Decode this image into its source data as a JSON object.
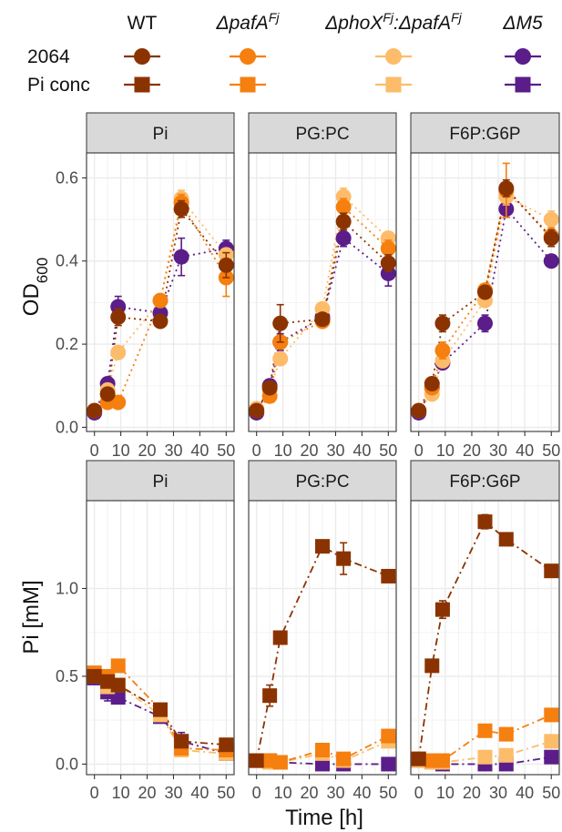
{
  "legend": {
    "row_labels": [
      "2064",
      "Pi conc"
    ],
    "strains": [
      {
        "key": "WT",
        "label": "WT",
        "color": "#8B3300"
      },
      {
        "key": "pafA",
        "label": "ΔpafA^Fj",
        "color": "#F57F0F"
      },
      {
        "key": "phoX",
        "label": "ΔphoX^Fj:ΔpafA^Fj",
        "color": "#FCBC6A"
      },
      {
        "key": "M5",
        "label": "ΔM5",
        "color": "#5B1D8A"
      }
    ]
  },
  "colors": {
    "WT": "#8B3300",
    "pafA": "#F57F0F",
    "phoX": "#FCBC6A",
    "M5": "#5B1D8A",
    "strip_bg": "#D9D9D9",
    "grid": "#EBEBEB"
  },
  "panels": [
    "Pi",
    "PG:PC",
    "F6P:G6P"
  ],
  "xlabel": "Time [h]",
  "ylabel_top": "OD",
  "ylabel_top_sub": "600",
  "ylabel_bottom": "Pi [mM]",
  "chart_data": [
    {
      "type": "line",
      "title": "",
      "ylabel": "OD600",
      "xlabel": "Time [h]",
      "xlim": [
        -3,
        53
      ],
      "ylim": [
        -0.01,
        0.66
      ],
      "x_ticks": [
        0,
        10,
        20,
        30,
        40,
        50
      ],
      "y_ticks": [
        0.0,
        0.2,
        0.4,
        0.6
      ],
      "y_tick_labels": [
        "0.0",
        "0.2",
        "0.4",
        "0.6"
      ],
      "marker": "circle",
      "line_style": "dotted",
      "grid": true,
      "facets": [
        {
          "panel": "Pi",
          "x": [
            0,
            5,
            9,
            25,
            33,
            50
          ],
          "series": [
            {
              "name": "WT",
              "values": [
                0.04,
                0.08,
                0.265,
                0.255,
                0.525,
                0.39
              ],
              "errors": [
                0,
                0,
                0.02,
                0,
                0.02,
                0.03
              ]
            },
            {
              "name": "ΔpafA^Fj",
              "values": [
                0.04,
                0.06,
                0.06,
                0.305,
                0.54,
                0.36
              ],
              "errors": [
                0,
                0,
                0,
                0,
                0.02,
                0.045
              ]
            },
            {
              "name": "ΔphoX^Fj:ΔpafA^Fj",
              "values": [
                0.04,
                0.09,
                0.18,
                0.305,
                0.55,
                0.415
              ],
              "errors": [
                0,
                0,
                0,
                0,
                0.02,
                0
              ]
            },
            {
              "name": "ΔM5",
              "values": [
                0.035,
                0.105,
                0.29,
                0.275,
                0.41,
                0.43
              ],
              "errors": [
                0,
                0.01,
                0.025,
                0,
                0.045,
                0.02
              ]
            }
          ]
        },
        {
          "panel": "PG:PC",
          "x": [
            0,
            5,
            9,
            25,
            33,
            50
          ],
          "series": [
            {
              "name": "WT",
              "values": [
                0.04,
                0.095,
                0.25,
                0.26,
                0.495,
                0.395
              ],
              "errors": [
                0,
                0,
                0.045,
                0,
                0.02,
                0.02
              ]
            },
            {
              "name": "ΔpafA^Fj",
              "values": [
                0.04,
                0.075,
                0.205,
                0.255,
                0.53,
                0.43
              ],
              "errors": [
                0,
                0,
                0,
                0,
                0.02,
                0.02
              ]
            },
            {
              "name": "ΔphoX^Fj:ΔpafA^Fj",
              "values": [
                0.045,
                0.09,
                0.165,
                0.285,
                0.555,
                0.455
              ],
              "errors": [
                0,
                0,
                0,
                0,
                0.02,
                0
              ]
            },
            {
              "name": "ΔM5",
              "values": [
                0.035,
                0.1,
                0.205,
                0.265,
                0.455,
                0.37
              ],
              "errors": [
                0,
                0,
                0.02,
                0,
                0.02,
                0.03
              ]
            }
          ]
        },
        {
          "panel": "F6P:G6P",
          "x": [
            0,
            5,
            9,
            25,
            33,
            50
          ],
          "series": [
            {
              "name": "WT",
              "values": [
                0.04,
                0.105,
                0.25,
                0.325,
                0.575,
                0.455
              ],
              "errors": [
                0,
                0,
                0.02,
                0,
                0.02,
                0.02
              ]
            },
            {
              "name": "ΔpafA^Fj",
              "values": [
                0.04,
                0.095,
                0.185,
                0.33,
                0.57,
                0.46
              ],
              "errors": [
                0,
                0,
                0.02,
                0,
                0.065,
                0.02
              ]
            },
            {
              "name": "ΔphoX^Fj:ΔpafA^Fj",
              "values": [
                0.04,
                0.08,
                0.16,
                0.305,
                0.555,
                0.5
              ],
              "errors": [
                0,
                0,
                0,
                0,
                0.02,
                0.02
              ]
            },
            {
              "name": "ΔM5",
              "values": [
                0.035,
                0.095,
                0.155,
                0.25,
                0.525,
                0.4
              ],
              "errors": [
                0,
                0,
                0,
                0.02,
                0.02,
                0
              ]
            }
          ]
        }
      ]
    },
    {
      "type": "line",
      "title": "",
      "ylabel": "Pi [mM]",
      "xlabel": "Time [h]",
      "xlim": [
        -3,
        53
      ],
      "ylim": [
        -0.06,
        1.5
      ],
      "x_ticks": [
        0,
        10,
        20,
        30,
        40,
        50
      ],
      "y_ticks": [
        0.0,
        0.5,
        1.0
      ],
      "y_tick_labels": [
        "0.0",
        "0.5",
        "1.0"
      ],
      "marker": "square",
      "line_style": "dotdash",
      "grid": true,
      "facets": [
        {
          "panel": "Pi",
          "x": [
            0,
            5,
            9,
            25,
            33,
            50
          ],
          "series": [
            {
              "name": "WT",
              "values": [
                0.5,
                0.47,
                0.45,
                0.31,
                0.13,
                0.11
              ],
              "errors": [
                0,
                0,
                0,
                0,
                0,
                0
              ]
            },
            {
              "name": "ΔpafA^Fj",
              "values": [
                0.52,
                0.5,
                0.56,
                0.31,
                0.09,
                0.08
              ],
              "errors": [
                0,
                0,
                0,
                0,
                0,
                0
              ]
            },
            {
              "name": "ΔphoX^Fj:ΔpafA^Fj",
              "values": [
                0.5,
                0.44,
                0.45,
                0.28,
                0.08,
                0.06
              ],
              "errors": [
                0,
                0,
                0,
                0,
                0,
                0
              ]
            },
            {
              "name": "ΔM5",
              "values": [
                0.49,
                0.41,
                0.38,
                0.27,
                0.13,
                0.06
              ],
              "errors": [
                0,
                0.05,
                0,
                0,
                0.05,
                0
              ]
            }
          ]
        },
        {
          "panel": "PG:PC",
          "x": [
            0,
            5,
            9,
            25,
            33,
            50
          ],
          "series": [
            {
              "name": "WT",
              "values": [
                0.02,
                0.39,
                0.72,
                1.24,
                1.17,
                1.07
              ],
              "errors": [
                0,
                0.06,
                0,
                0,
                0.09,
                0
              ]
            },
            {
              "name": "ΔpafA^Fj",
              "values": [
                0.02,
                0.02,
                0.01,
                0.08,
                0.03,
                0.16
              ],
              "errors": [
                0,
                0,
                0,
                0,
                0,
                0
              ]
            },
            {
              "name": "ΔphoX^Fj:ΔpafA^Fj",
              "values": [
                0.02,
                0.01,
                0.01,
                0.06,
                0.02,
                0.13
              ],
              "errors": [
                0,
                0,
                0,
                0,
                0,
                0
              ]
            },
            {
              "name": "ΔM5",
              "values": [
                0.02,
                0.02,
                0.01,
                0.0,
                0.0,
                0.0
              ],
              "errors": [
                0,
                0,
                0,
                0,
                0,
                0
              ]
            }
          ]
        },
        {
          "panel": "F6P:G6P",
          "x": [
            0,
            5,
            9,
            25,
            33,
            50
          ],
          "series": [
            {
              "name": "WT",
              "values": [
                0.03,
                0.56,
                0.88,
                1.38,
                1.28,
                1.1
              ],
              "errors": [
                0,
                0,
                0.05,
                0.04,
                0,
                0
              ]
            },
            {
              "name": "ΔpafA^Fj",
              "values": [
                0.03,
                0.02,
                0.02,
                0.19,
                0.17,
                0.28
              ],
              "errors": [
                0,
                0,
                0,
                0,
                0,
                0
              ]
            },
            {
              "name": "ΔphoX^Fj:ΔpafA^Fj",
              "values": [
                0.02,
                0.01,
                0.01,
                0.04,
                0.05,
                0.13
              ],
              "errors": [
                0,
                0,
                0,
                0,
                0,
                0
              ]
            },
            {
              "name": "ΔM5",
              "values": [
                0.02,
                0.01,
                0.0,
                0.0,
                0.0,
                0.04
              ],
              "errors": [
                0,
                0,
                0,
                0,
                0,
                0
              ]
            }
          ]
        }
      ]
    }
  ]
}
